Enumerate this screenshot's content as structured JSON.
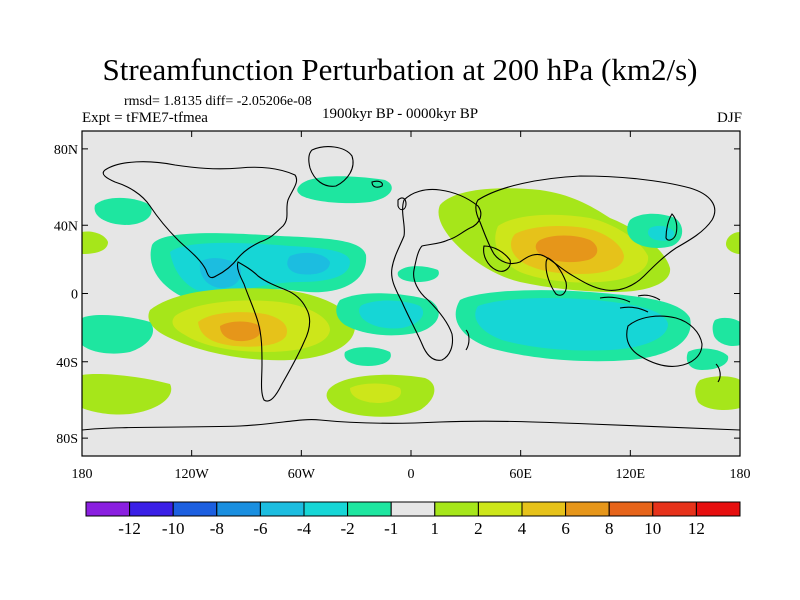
{
  "header": {
    "title": "Streamfunction Perturbation at 200 hPa (km2/s)",
    "stats": "rmsd= 1.8135 diff= -2.05206e-08",
    "experiment": "Expt = tFME7-tfmea",
    "period": "1900kyr BP - 0000kyr BP",
    "season": "DJF"
  },
  "map": {
    "lon_ticks": [
      "180",
      "120W",
      "60W",
      "0",
      "60E",
      "120E",
      "180"
    ],
    "lat_ticks": [
      "80N",
      "40N",
      "0",
      "40S",
      "80S"
    ],
    "background_color": "#e6e6e6"
  },
  "colorbar": {
    "labels": [
      "-12",
      "-10",
      "-8",
      "-6",
      "-4",
      "-2",
      "-1",
      "1",
      "2",
      "4",
      "6",
      "8",
      "10",
      "12"
    ],
    "colors": [
      "#8a1fe0",
      "#3a1fe6",
      "#1c5fe0",
      "#1a8fe0",
      "#1cbde0",
      "#16d6d6",
      "#1ee6a0",
      "#e6e6e6",
      "#a6e61a",
      "#cde61a",
      "#e6c21a",
      "#e6961a",
      "#e6641a",
      "#e6321a",
      "#e60e0e"
    ]
  }
}
